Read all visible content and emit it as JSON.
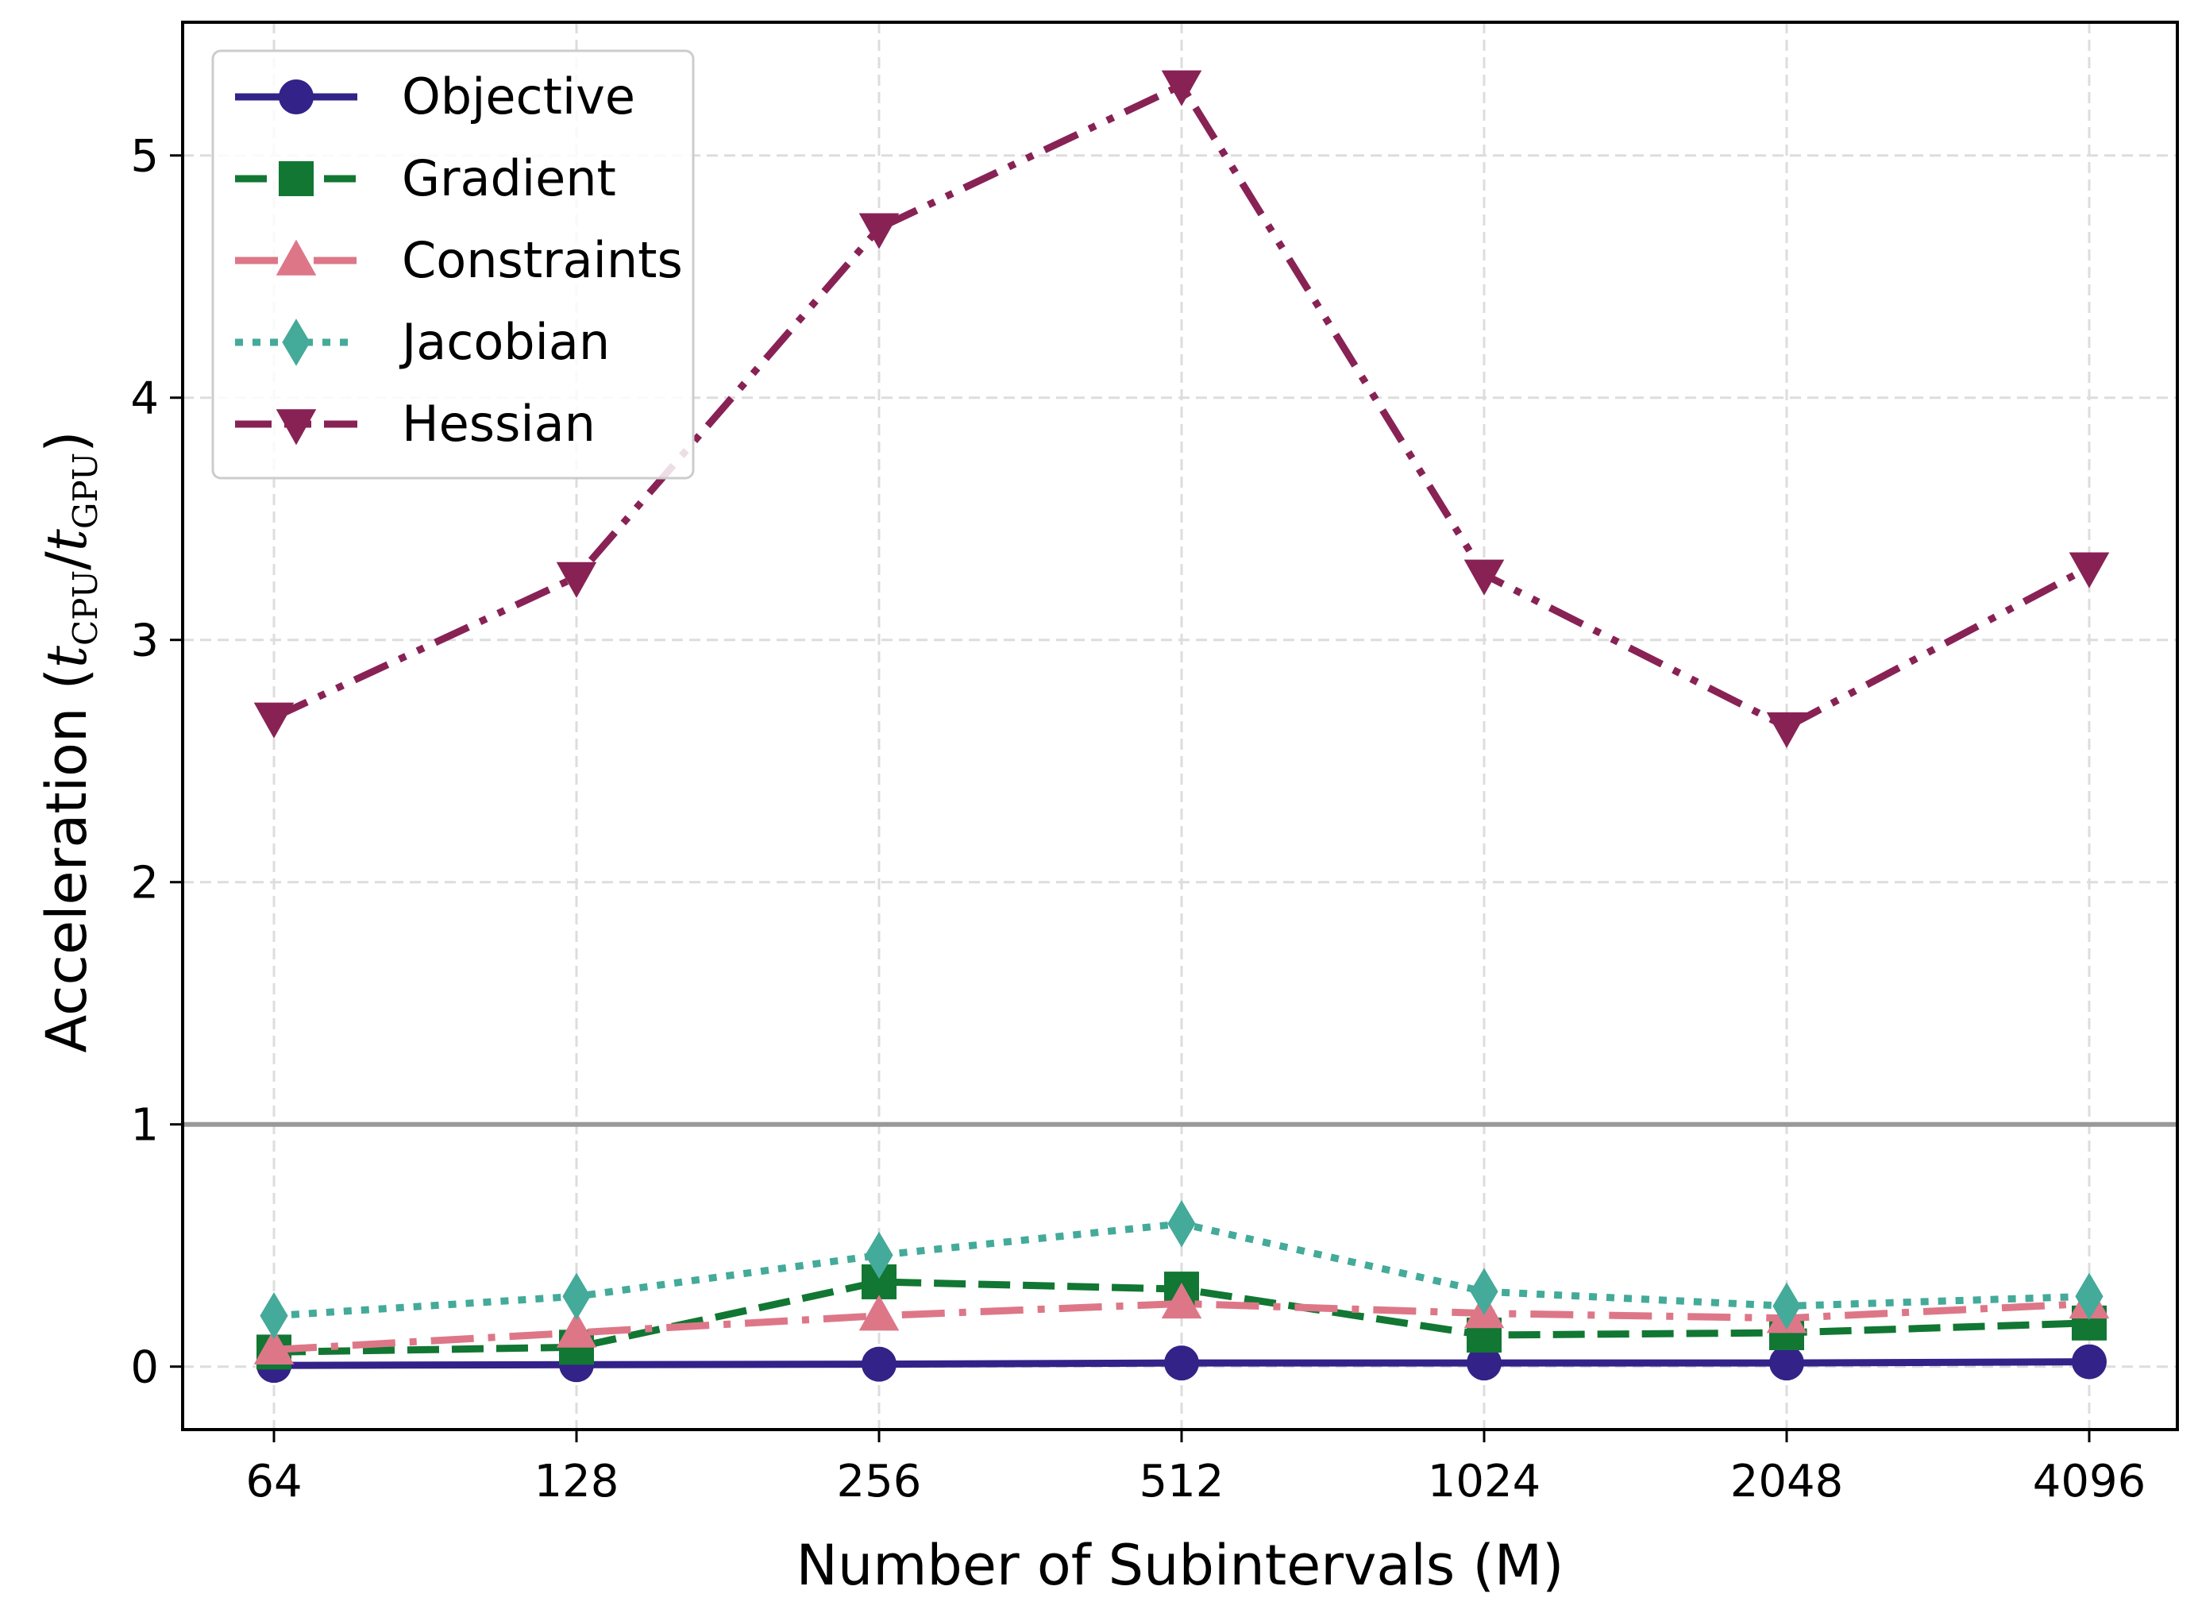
{
  "chart_data": {
    "type": "line",
    "title": "",
    "xlabel": "Number of Subintervals (M)",
    "ylabel": {
      "prefix": "Acceleration (",
      "t1": "t",
      "sub1": "CPU",
      "slash": "/",
      "t2": "t",
      "sub2": "GPU",
      "suffix": ")"
    },
    "categories": [
      "64",
      "128",
      "256",
      "512",
      "1024",
      "2048",
      "4096"
    ],
    "yticks": [
      "0",
      "1",
      "2",
      "3",
      "4",
      "5"
    ],
    "ylim": [
      -0.26,
      5.55
    ],
    "grid": true,
    "reference_line": {
      "y": 1,
      "color": "#999999"
    },
    "legend_position": "top-left",
    "series": [
      {
        "name": "Objective",
        "color": "#332288",
        "dash": "solid",
        "marker": "circle",
        "values": [
          0.005,
          0.008,
          0.01,
          0.015,
          0.015,
          0.015,
          0.02
        ]
      },
      {
        "name": "Gradient",
        "color": "#117733",
        "dash": "dashed",
        "marker": "square",
        "values": [
          0.06,
          0.08,
          0.35,
          0.32,
          0.13,
          0.14,
          0.18
        ]
      },
      {
        "name": "Constraints",
        "color": "#DD7788",
        "dash": "dashdot",
        "marker": "triangle-up",
        "values": [
          0.07,
          0.14,
          0.21,
          0.26,
          0.22,
          0.2,
          0.26
        ]
      },
      {
        "name": "Jacobian",
        "color": "#44AA99",
        "dash": "dotted",
        "marker": "diamond",
        "values": [
          0.21,
          0.29,
          0.46,
          0.59,
          0.31,
          0.25,
          0.29
        ]
      },
      {
        "name": "Hessian",
        "color": "#882255",
        "dash": "dashdotdot",
        "marker": "triangle-down",
        "values": [
          2.68,
          3.26,
          4.7,
          5.29,
          3.27,
          2.64,
          3.3
        ]
      }
    ]
  }
}
